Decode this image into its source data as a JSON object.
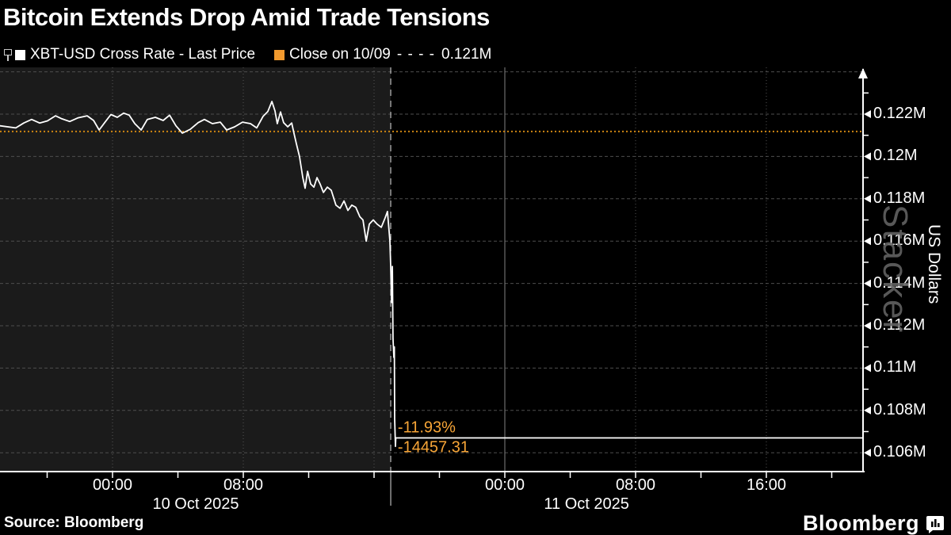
{
  "header": {
    "title": "Bitcoin Extends Drop Amid Trade Tensions"
  },
  "legend": {
    "series": [
      {
        "swatch": "#ffffff",
        "label": "XBT-USD Cross Rate - Last Price"
      },
      {
        "swatch": "#f29a2e",
        "label": "Close on 10/09",
        "dashes": "- - - -",
        "value": "0.121M"
      }
    ]
  },
  "chart_data": {
    "type": "line",
    "title": "XBT-USD Cross Rate - Last Price",
    "ylabel": "US Dollars",
    "unit": "M",
    "ylim": [
      0.1055,
      0.124
    ],
    "x_axis_hours_range": [
      -6.885,
      45.915
    ],
    "x_axis_epoch": "hours since 10 Oct 2025 00:00",
    "grid": true,
    "legend_position": "top-left",
    "ygrid_values": [
      0.124,
      0.122,
      0.12,
      0.118,
      0.116,
      0.114,
      0.112,
      0.11,
      0.108,
      0.106
    ],
    "yticks_major": [
      {
        "value": 0.122,
        "label": "0.122M"
      },
      {
        "value": 0.12,
        "label": "0.12M"
      },
      {
        "value": 0.118,
        "label": "0.118M"
      },
      {
        "value": 0.116,
        "label": "0.116M"
      },
      {
        "value": 0.114,
        "label": "0.114M"
      },
      {
        "value": 0.112,
        "label": "0.112M"
      },
      {
        "value": 0.11,
        "label": "0.11M"
      },
      {
        "value": 0.108,
        "label": "0.108M"
      },
      {
        "value": 0.106,
        "label": "0.106M"
      }
    ],
    "yticks_minor": [
      0.123,
      0.121,
      0.119,
      0.117,
      0.115,
      0.113,
      0.111,
      0.109,
      0.107
    ],
    "xticks": [
      {
        "hour": 0,
        "label": "00:00"
      },
      {
        "hour": 8,
        "label": "08:00"
      },
      {
        "hour": 24,
        "label": "00:00"
      },
      {
        "hour": 32,
        "label": "08:00"
      },
      {
        "hour": 40,
        "label": "16:00"
      }
    ],
    "xticks_minor_hours": [
      -4,
      0,
      4,
      8,
      12,
      16,
      20,
      24,
      28,
      32,
      36,
      40,
      44
    ],
    "xgrid_hours": [
      0,
      8,
      16,
      24,
      32,
      40
    ],
    "solid_grid_hours": [
      24
    ],
    "date_labels": [
      {
        "label": "10 Oct 2025",
        "center_hour": 5.09
      },
      {
        "label": "11 Oct 2025",
        "center_hour": 29.0
      }
    ],
    "close_line": {
      "value": 0.12118,
      "display": "0.121M",
      "label": "Close on 10/09",
      "color": "#cd8512"
    },
    "session_divider_hour": 17.02,
    "session_shading": {
      "from_hour": -6.885,
      "to_hour": 17.02,
      "color": "#1b1b1b"
    },
    "series": [
      {
        "name": "XBT-USD Cross Rate - Last Price",
        "color": "#ffffff",
        "points": [
          [
            -6.89,
            0.12145
          ],
          [
            -5.92,
            0.12135
          ],
          [
            -5.43,
            0.12158
          ],
          [
            -4.95,
            0.12175
          ],
          [
            -4.46,
            0.12158
          ],
          [
            -3.98,
            0.12168
          ],
          [
            -3.49,
            0.12192
          ],
          [
            -3.1,
            0.12178
          ],
          [
            -2.62,
            0.12165
          ],
          [
            -2.13,
            0.12182
          ],
          [
            -1.55,
            0.12192
          ],
          [
            -1.16,
            0.1217
          ],
          [
            -0.82,
            0.12125
          ],
          [
            -0.48,
            0.1216
          ],
          [
            -0.1,
            0.12198
          ],
          [
            0.29,
            0.12185
          ],
          [
            0.68,
            0.12205
          ],
          [
            1.02,
            0.12195
          ],
          [
            1.36,
            0.12155
          ],
          [
            1.75,
            0.12125
          ],
          [
            2.13,
            0.12175
          ],
          [
            2.62,
            0.12185
          ],
          [
            3.1,
            0.1217
          ],
          [
            3.49,
            0.12195
          ],
          [
            3.88,
            0.12145
          ],
          [
            4.27,
            0.1211
          ],
          [
            4.75,
            0.12128
          ],
          [
            5.24,
            0.1216
          ],
          [
            5.62,
            0.12175
          ],
          [
            6.11,
            0.12155
          ],
          [
            6.59,
            0.12162
          ],
          [
            6.98,
            0.12125
          ],
          [
            7.47,
            0.1214
          ],
          [
            7.95,
            0.12162
          ],
          [
            8.44,
            0.12155
          ],
          [
            8.82,
            0.12135
          ],
          [
            9.21,
            0.1219
          ],
          [
            9.5,
            0.12212
          ],
          [
            9.75,
            0.1226
          ],
          [
            9.94,
            0.12215
          ],
          [
            10.08,
            0.12155
          ],
          [
            10.28,
            0.1221
          ],
          [
            10.47,
            0.1216
          ],
          [
            10.72,
            0.1214
          ],
          [
            10.96,
            0.12158
          ],
          [
            11.1,
            0.1211
          ],
          [
            11.25,
            0.1206
          ],
          [
            11.44,
            0.12
          ],
          [
            11.64,
            0.119
          ],
          [
            11.78,
            0.1185
          ],
          [
            11.93,
            0.1193
          ],
          [
            12.12,
            0.1187
          ],
          [
            12.32,
            0.11855
          ],
          [
            12.51,
            0.119
          ],
          [
            12.7,
            0.1187
          ],
          [
            12.9,
            0.1183
          ],
          [
            13.14,
            0.11855
          ],
          [
            13.38,
            0.1184
          ],
          [
            13.67,
            0.1177
          ],
          [
            13.92,
            0.11755
          ],
          [
            14.16,
            0.1179
          ],
          [
            14.4,
            0.11745
          ],
          [
            14.64,
            0.1177
          ],
          [
            14.88,
            0.1176
          ],
          [
            15.13,
            0.11715
          ],
          [
            15.32,
            0.117
          ],
          [
            15.52,
            0.116
          ],
          [
            15.71,
            0.1168
          ],
          [
            15.95,
            0.117
          ],
          [
            16.19,
            0.1168
          ],
          [
            16.44,
            0.11665
          ],
          [
            16.68,
            0.1171
          ],
          [
            16.82,
            0.1174
          ],
          [
            16.97,
            0.116
          ],
          [
            17.02,
            0.1148
          ],
          [
            17.07,
            0.1131
          ],
          [
            17.12,
            0.1148
          ],
          [
            17.16,
            0.1114
          ],
          [
            17.21,
            0.1105
          ],
          [
            17.24,
            0.111
          ],
          [
            17.26,
            0.1076
          ],
          [
            17.31,
            0.1063
          ],
          [
            17.33,
            0.1067
          ],
          [
            45.9,
            0.1067
          ]
        ]
      }
    ],
    "annotations": [
      {
        "text": "-11.93%",
        "hour": 17.45,
        "value": 0.10718,
        "color": "#f7a537"
      },
      {
        "text": "-14457.31",
        "hour": 17.45,
        "value": 0.10622,
        "color": "#f7a537"
      }
    ],
    "style": {
      "grid_h": "#4e4e4e",
      "grid_v": "#555555",
      "grid_v_solid": "#828282",
      "axis": "#ffffff",
      "divider": "#dedede",
      "price": "#ffffff"
    }
  },
  "watermark": {
    "text": "Stacker"
  },
  "footer": {
    "source": "Source: Bloomberg",
    "brand": "Bloomberg"
  }
}
